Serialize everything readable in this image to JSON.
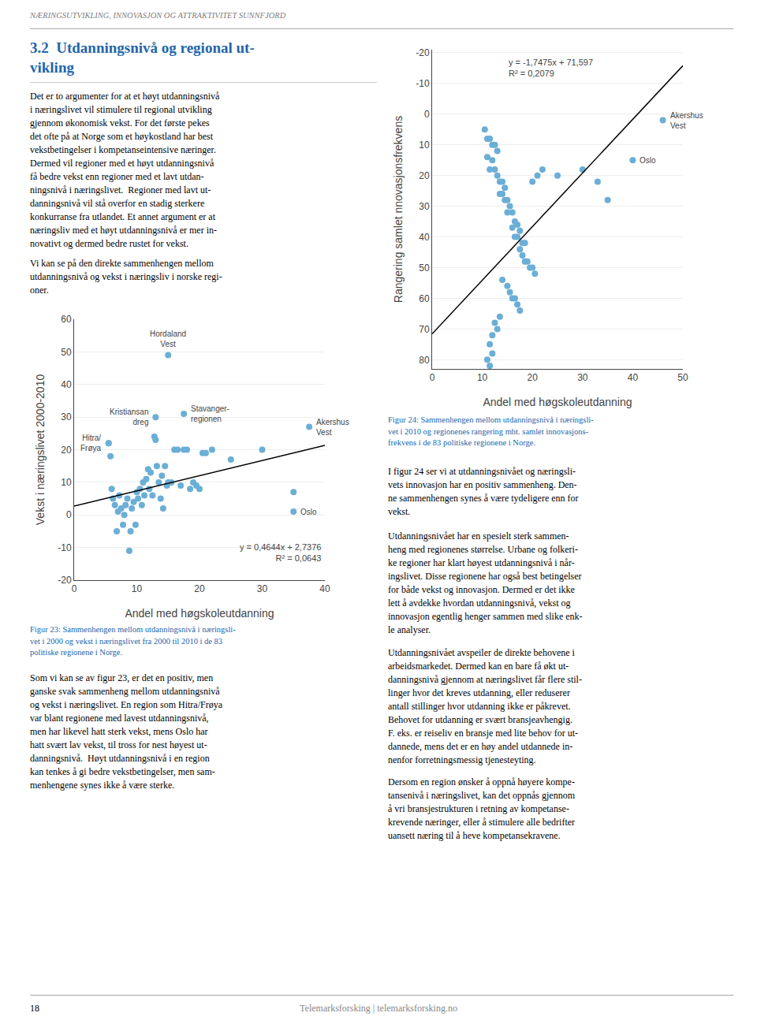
{
  "chart_data": [
    {
      "type": "scatter",
      "xlabel": "Andel med høgskoleutdanning",
      "ylabel": "Vekst i næringslivet 2000-2010",
      "xlim": [
        0,
        40
      ],
      "ylim": [
        -20,
        60
      ],
      "xticks": [
        0,
        10,
        20,
        30,
        40
      ],
      "yticks": [
        -20,
        -10,
        0,
        10,
        20,
        30,
        40,
        50,
        60
      ],
      "grid": "y",
      "equation": "y = 0,4644x + 2,7376",
      "r2": "R² = 0,0643",
      "caption": "Figur 23: Sammenhengen mellom utdanningsnivå i næringsli-\nvet i 2000 og vekst i næringslivet fra 2000 til 2010 i de 83\npolitiske regionene i Norge.",
      "series": [
        {
          "type": "scatter",
          "color": "#6BAED6",
          "x": [
            5.5,
            5.8,
            6.0,
            6.2,
            6.5,
            6.8,
            7.0,
            7.2,
            7.5,
            7.8,
            8.0,
            8.2,
            8.5,
            8.8,
            9.0,
            9.2,
            9.5,
            9.8,
            10.0,
            10.2,
            10.5,
            10.8,
            11.0,
            11.2,
            11.5,
            11.8,
            12.0,
            12.2,
            12.5,
            12.8,
            13.0,
            13.2,
            13.5,
            13.8,
            14.0,
            14.2,
            14.5,
            14.8,
            15.0,
            15.5,
            16.0,
            16.5,
            17.0,
            17.5,
            18.0,
            18.5,
            19.0,
            19.5,
            20.0,
            20.5,
            21.0,
            22.0,
            25.0,
            30.0,
            35.0,
            5.5,
            13.0,
            17.5,
            37.5,
            15.0,
            35.0
          ],
          "values": [
            22,
            18,
            8,
            5,
            3,
            -5,
            1,
            6,
            2,
            -3,
            0,
            3,
            5,
            -11,
            -5,
            2,
            4,
            -3,
            7,
            5,
            8,
            3,
            10,
            6,
            11,
            14,
            8,
            13,
            6,
            24,
            23,
            15,
            10,
            5,
            12,
            2,
            15,
            9,
            10,
            10,
            20,
            20,
            9,
            20,
            20,
            8,
            10,
            9,
            8,
            19,
            19,
            20,
            17,
            20,
            7,
            22,
            30,
            31,
            27,
            49,
            1
          ]
        },
        {
          "type": "line",
          "color": "#000000",
          "x": [
            0,
            40
          ],
          "values": [
            2.7376,
            21.3136
          ]
        }
      ],
      "annotations": [
        {
          "x": 5.5,
          "y": 22,
          "text": "Hitra/\nFrøya",
          "position": "left"
        },
        {
          "x": 13.0,
          "y": 30,
          "text": "Kristiansan\ndreg",
          "position": "left"
        },
        {
          "x": 17.5,
          "y": 31,
          "text": "Stavanger-\nregionen",
          "position": "right"
        },
        {
          "x": 37.5,
          "y": 27,
          "text": "Akershus\nVest",
          "position": "right"
        },
        {
          "x": 15.0,
          "y": 49,
          "text": "Hordaland\nVest",
          "position": "above"
        },
        {
          "x": 35.0,
          "y": 1,
          "text": "Oslo",
          "position": "right"
        }
      ]
    },
    {
      "type": "scatter",
      "xlabel": "Andel med høgskoleutdanning",
      "ylabel": "Rangering samlet nnovasjonsfrekvens",
      "xlim": [
        0,
        50
      ],
      "ylim": [
        83,
        -21
      ],
      "xticks": [
        0,
        10,
        20,
        30,
        40,
        50
      ],
      "yticks": [
        -20,
        -10,
        0,
        10,
        20,
        30,
        40,
        50,
        60,
        70,
        80
      ],
      "grid": "y",
      "equation": "y = -1,7475x + 71,597",
      "r2": "R² = 0,2079",
      "caption": "Figur 24: Sammenhengen mellom utdanningsnivå i næringsli-\nvet i 2010 og regionenes rangering mht. samlet innovasjons-\nfrekvens i de 83 politiske regionene i Norge.",
      "series": [
        {
          "type": "scatter",
          "color": "#6BAED6",
          "x": [
            10.5,
            11.0,
            11.5,
            12.0,
            12.5,
            11.0,
            12.0,
            13.0,
            11.5,
            12.5,
            13.0,
            13.5,
            14.0,
            14.5,
            13.5,
            14.0,
            14.5,
            15.0,
            15.5,
            15.0,
            16.0,
            16.5,
            16.0,
            17.0,
            17.5,
            16.5,
            17.0,
            18.0,
            18.5,
            17.5,
            18.0,
            18.5,
            19.0,
            19.5,
            20.0,
            20.5,
            14.0,
            15.0,
            15.5,
            16.0,
            16.5,
            17.0,
            17.5,
            13.5,
            12.5,
            13.0,
            12.0,
            11.5,
            12.0,
            11.0,
            11.5,
            20.0,
            21.0,
            22.0,
            25.0,
            30.0,
            33.0,
            35.0,
            46.0,
            40.0
          ],
          "values": [
            5,
            8,
            8,
            10,
            10,
            14,
            15,
            12,
            18,
            18,
            20,
            22,
            22,
            24,
            26,
            26,
            28,
            28,
            30,
            32,
            32,
            35,
            37,
            36,
            38,
            40,
            40,
            42,
            42,
            44,
            46,
            48,
            48,
            50,
            50,
            52,
            54,
            56,
            58,
            60,
            60,
            62,
            64,
            66,
            68,
            70,
            72,
            75,
            78,
            80,
            82,
            22,
            20,
            18,
            20,
            18,
            22,
            28,
            2,
            15
          ]
        },
        {
          "type": "line",
          "color": "#000000",
          "x": [
            0,
            50
          ],
          "values": [
            71.597,
            -15.778
          ]
        }
      ],
      "annotations": [
        {
          "x": 46.0,
          "y": 2,
          "text": "Akershus\nVest",
          "position": "right"
        },
        {
          "x": 40.0,
          "y": 15,
          "text": "Oslo",
          "position": "right"
        }
      ]
    }
  ],
  "page": {
    "header": "NÆRINGSUTVIKLING, INNOVASJON OG ATTRAKTIVITET SUNNFJORD",
    "header_color": "#808080",
    "section_title": "3.2  Utdanningsnivå og regional ut-\nvikling",
    "section_title_color": "#2166AC",
    "caption_color": "#2166AC",
    "texts": [
      "Det er to argumenter for at et høyt utdanningsnivå\ni næringslivet vil stimulere til regional utvikling\ngjennom økonomisk vekst. For det første pekes\ndet ofte på at Norge som et høykostland har best\nvekstbetingelser i kompetanseintensive næringer.\nDermed vil regioner med et høyt utdanningsnivå\nfå bedre vekst enn regioner med et lavt utdan-\nningsnivå i næringslivet.  Regioner med lavt ut-\ndanningsnivå vil stå overfor en stadig sterkere\nkonkurranse fra utlandet. Et annet argument er at\nnæringsliv med et høyt utdanningsnivå er mer in-\nnovativt og dermed bedre rustet for vekst.",
      "Vi kan se på den direkte sammenhengen mellom\nutdanningsnivå og vekst i næringsliv i norske regi-\noner.",
      "Som vi kan se av figur 23, er det en positiv, men\nganske svak sammenheng mellom utdanningsnivå\nog vekst i næringslivet. En region som Hitra/Frøya\nvar blant regionene med lavest utdanningsnivå,\nmen har likevel hatt sterk vekst, mens Oslo har\nhatt svært lav vekst, til tross for nest høyest ut-\ndanningsnivå.  Høyt utdanningsnivå i en region\nkan tenkes å gi bedre vekstbetingelser, men sam-\nmenhengene synes ikke å være sterke.",
      "I figur 24 ser vi at utdanningsnivået og næringsli-\nvets innovasjon har en positiv sammenheng. Den-\nne sammenhengen synes å være tydeligere enn for\nvekst.",
      "Utdanningsnivået har en spesielt sterk sammen-\nheng med regionenes størrelse. Urbane og folkeri-\nke regioner har klart høyest utdanningsnivå i når-\ningslivet. Disse regionene har også best betingelser\nfor både vekst og innovasjon. Dermed er det ikke\nlett å avdekke hvordan utdanningsnivå, vekst og\ninnovasjon egentlig henger sammen med slike enk-\nle analyser.",
      "Utdanningsnivået avspeiler de direkte behovene i\narbeidsmarkedet. Dermed kan en bare få økt ut-\ndanningsnivå gjennom at næringslivet får flere stil-\nlinger hvor det kreves utdanning, eller reduserer\nantall stillinger hvor utdanning ikke er påkrevet.\nBehovet for utdanning er svært bransjeavhengig.\nF. eks. er reiseliv en bransje med lite behov for ut-\ndannede, mens det er en høy andel utdannede in-\nnenfor forretningsmessig tjenesteyting.",
      "Dersom en region ønsker å oppnå høyere kompe-\ntansenivå i næringslivet, kan det oppnås gjennom\nå vri bransjestrukturen i retning av kompetanse-\nkrevende næringer, eller å stimulere alle bedrifter\nuansett næring til å heve kompetansekravene."
    ],
    "page_number": "18",
    "footer": "Telemarksforsking | telemarksforsking.no",
    "footer_color": "#888888"
  }
}
